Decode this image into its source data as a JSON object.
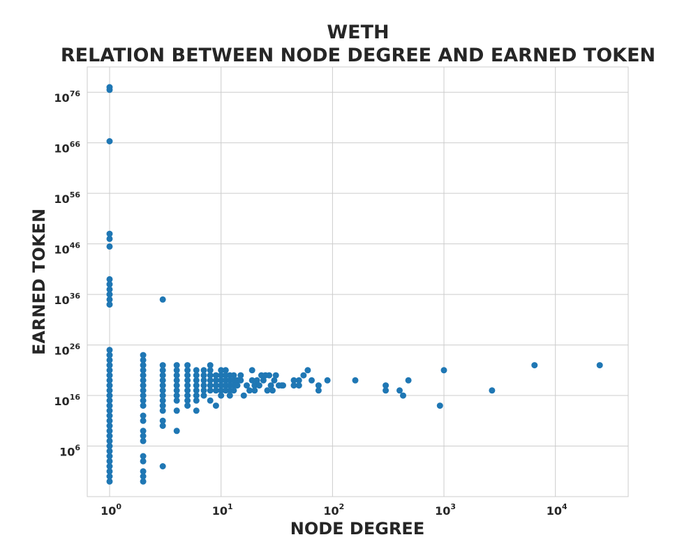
{
  "chart_data": {
    "type": "scatter",
    "title": "WETH",
    "subtitle": "RELATION BETWEEN NODE DEGREE AND EARNED TOKEN",
    "xlabel": "NODE DEGREE",
    "ylabel": "EARNED TOKEN",
    "x_scale": "log",
    "y_scale": "log",
    "xlim": [
      0.63,
      45000
    ],
    "ylim": [
      0.0001,
      1e+81
    ],
    "x_ticks": [
      {
        "base": "10",
        "exp": "0",
        "value": 1
      },
      {
        "base": "10",
        "exp": "1",
        "value": 10
      },
      {
        "base": "10",
        "exp": "2",
        "value": 100
      },
      {
        "base": "10",
        "exp": "3",
        "value": 1000
      },
      {
        "base": "10",
        "exp": "4",
        "value": 10000
      }
    ],
    "y_ticks": [
      {
        "base": "10",
        "exp": "6",
        "value": 1000000.0
      },
      {
        "base": "10",
        "exp": "16",
        "value": 1e+16
      },
      {
        "base": "10",
        "exp": "26",
        "value": 1e+26
      },
      {
        "base": "10",
        "exp": "36",
        "value": 1e+36
      },
      {
        "base": "10",
        "exp": "46",
        "value": 1e+46
      },
      {
        "base": "10",
        "exp": "56",
        "value": 1e+56
      },
      {
        "base": "10",
        "exp": "66",
        "value": 1e+66
      },
      {
        "base": "10",
        "exp": "76",
        "value": 1e+76
      }
    ],
    "grid": true,
    "marker_color": "#1f77b4",
    "series": [
      {
        "points": [
          [
            1,
            1e+77
          ],
          [
            1,
            3e+76
          ],
          [
            1,
            2e+66
          ],
          [
            1,
            1e+48
          ],
          [
            1,
            1e+47
          ],
          [
            1,
            3e+45
          ],
          [
            1,
            1e+39
          ],
          [
            1,
            1e+38
          ],
          [
            1,
            1e+37
          ],
          [
            1,
            1e+36
          ],
          [
            1,
            1e+35
          ],
          [
            1,
            1e+34
          ],
          [
            1,
            1e+25
          ],
          [
            1,
            1e+24
          ],
          [
            1,
            1e+23
          ],
          [
            1,
            1e+22
          ],
          [
            1,
            1e+21
          ],
          [
            1,
            1e+20
          ],
          [
            1,
            1e+19
          ],
          [
            1,
            1e+18
          ],
          [
            1,
            1e+17
          ],
          [
            1,
            1e+16
          ],
          [
            1,
            1000000000000000.0
          ],
          [
            1,
            100000000000000.0
          ],
          [
            1,
            10000000000000.0
          ],
          [
            1,
            1000000000000.0
          ],
          [
            1,
            100000000000.0
          ],
          [
            1,
            10000000000.0
          ],
          [
            1,
            1000000000.0
          ],
          [
            1,
            100000000.0
          ],
          [
            1,
            10000000.0
          ],
          [
            1,
            1000000.0
          ],
          [
            1,
            100000.0
          ],
          [
            1,
            10000.0
          ],
          [
            1,
            1000.0
          ],
          [
            1,
            100.0
          ],
          [
            1,
            10.0
          ],
          [
            1,
            1
          ],
          [
            1,
            0.1
          ],
          [
            2,
            1e+24
          ],
          [
            2,
            1e+23
          ],
          [
            2,
            1e+22
          ],
          [
            2,
            1e+21
          ],
          [
            2,
            1e+20
          ],
          [
            2,
            1e+19
          ],
          [
            2,
            1e+18
          ],
          [
            2,
            1e+17
          ],
          [
            2,
            1e+16
          ],
          [
            2,
            1000000000000000.0
          ],
          [
            2,
            100000000000000.0
          ],
          [
            2,
            1000000000000.0
          ],
          [
            2,
            100000000000.0
          ],
          [
            2,
            1000000000.0
          ],
          [
            2,
            100000000.0
          ],
          [
            2,
            10000000.0
          ],
          [
            2,
            10000.0
          ],
          [
            2,
            1000.0
          ],
          [
            2,
            10.0
          ],
          [
            2,
            1
          ],
          [
            2,
            0.1
          ],
          [
            3,
            1e+35
          ],
          [
            3,
            1e+22
          ],
          [
            3,
            1e+21
          ],
          [
            3,
            1e+20
          ],
          [
            3,
            1e+19
          ],
          [
            3,
            1e+18
          ],
          [
            3,
            1e+17
          ],
          [
            3,
            1e+16
          ],
          [
            3,
            1000000000000000.0
          ],
          [
            3,
            100000000000000.0
          ],
          [
            3,
            10000000000000.0
          ],
          [
            3,
            100000000000.0
          ],
          [
            3,
            10000000000.0
          ],
          [
            3,
            100.0
          ],
          [
            4,
            1e+22
          ],
          [
            4,
            1e+21
          ],
          [
            4,
            1e+20
          ],
          [
            4,
            1e+19
          ],
          [
            4,
            1e+18
          ],
          [
            4,
            1e+17
          ],
          [
            4,
            1e+16
          ],
          [
            4,
            1000000000000000.0
          ],
          [
            4,
            10000000000000.0
          ],
          [
            4,
            1000000000.0
          ],
          [
            5,
            1e+22
          ],
          [
            5,
            1e+21
          ],
          [
            5,
            1e+20
          ],
          [
            5,
            1e+19
          ],
          [
            5,
            1e+18
          ],
          [
            5,
            1e+17
          ],
          [
            5,
            1e+16
          ],
          [
            5,
            1000000000000000.0
          ],
          [
            5,
            100000000000000.0
          ],
          [
            6,
            1e+21
          ],
          [
            6,
            1e+20
          ],
          [
            6,
            1e+19
          ],
          [
            6,
            1e+18
          ],
          [
            6,
            1e+17
          ],
          [
            6,
            1e+16
          ],
          [
            6,
            1000000000000000.0
          ],
          [
            6,
            10000000000000.0
          ],
          [
            7,
            1e+21
          ],
          [
            7,
            1e+20
          ],
          [
            7,
            1e+19
          ],
          [
            7,
            1e+18
          ],
          [
            7,
            1e+17
          ],
          [
            7,
            1e+16
          ],
          [
            8,
            1e+22
          ],
          [
            8,
            1e+21
          ],
          [
            8,
            1e+20
          ],
          [
            8,
            1e+19
          ],
          [
            8,
            1e+18
          ],
          [
            8,
            1e+17
          ],
          [
            8,
            1000000000000000.0
          ],
          [
            9,
            1e+20
          ],
          [
            9,
            1e+19
          ],
          [
            9,
            1e+18
          ],
          [
            9,
            1e+17
          ],
          [
            9,
            100000000000000.0
          ],
          [
            10,
            1e+21
          ],
          [
            10,
            1e+20
          ],
          [
            10,
            1e+19
          ],
          [
            10,
            1e+18
          ],
          [
            10,
            1e+17
          ],
          [
            10,
            1e+16
          ],
          [
            11,
            1e+21
          ],
          [
            11,
            1e+20
          ],
          [
            11,
            1e+19
          ],
          [
            11,
            1e+18
          ],
          [
            11,
            1e+17
          ],
          [
            12,
            1e+20
          ],
          [
            12,
            1e+19
          ],
          [
            12,
            1e+18
          ],
          [
            12,
            1e+17
          ],
          [
            12,
            1e+16
          ],
          [
            13,
            1e+20
          ],
          [
            13,
            1e+19
          ],
          [
            13,
            1e+18
          ],
          [
            13,
            1e+17
          ],
          [
            14,
            1e+19
          ],
          [
            14,
            1e+18
          ],
          [
            15,
            1e+20
          ],
          [
            15,
            1e+19
          ],
          [
            16,
            1e+16
          ],
          [
            17,
            1e+18
          ],
          [
            18,
            1e+17
          ],
          [
            19,
            1e+21
          ],
          [
            19,
            1e+19
          ],
          [
            20,
            1e+18
          ],
          [
            20,
            1e+17
          ],
          [
            21,
            1e+19
          ],
          [
            22,
            1e+18
          ],
          [
            23,
            1e+20
          ],
          [
            24,
            1e+19
          ],
          [
            25,
            1e+20
          ],
          [
            26,
            1e+17
          ],
          [
            27,
            1e+20
          ],
          [
            28,
            1e+18
          ],
          [
            29,
            1e+17
          ],
          [
            30,
            1e+19
          ],
          [
            31,
            1e+20
          ],
          [
            33,
            1e+18
          ],
          [
            35,
            1e+18
          ],
          [
            36,
            1e+18
          ],
          [
            45,
            1e+19
          ],
          [
            45,
            1e+18
          ],
          [
            50,
            1e+19
          ],
          [
            50,
            1e+18
          ],
          [
            55,
            1e+20
          ],
          [
            60,
            1e+21
          ],
          [
            65,
            1e+19
          ],
          [
            75,
            1e+18
          ],
          [
            75,
            1e+17
          ],
          [
            90,
            1e+19
          ],
          [
            160,
            1e+19
          ],
          [
            300,
            1e+18
          ],
          [
            300,
            1e+17
          ],
          [
            400,
            1e+17
          ],
          [
            430,
            1e+16
          ],
          [
            480,
            1e+19
          ],
          [
            920,
            100000000000000.0
          ],
          [
            1000,
            1e+21
          ],
          [
            2700,
            1e+17
          ],
          [
            6500,
            1e+22
          ],
          [
            25000,
            1e+22
          ]
        ]
      }
    ]
  }
}
